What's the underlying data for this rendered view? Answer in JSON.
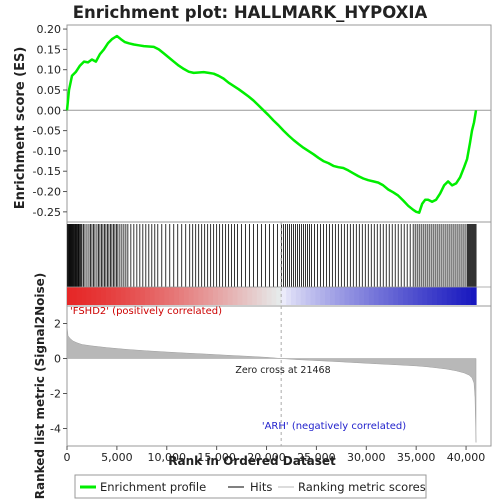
{
  "chart_data": {
    "type": "line",
    "title": "Enrichment plot: HALLMARK_HYPOXIA",
    "top_panel": {
      "ylabel": "Enrichment score (ES)",
      "ylim": [
        -0.275,
        0.21
      ],
      "yticks": [
        "0.20",
        "0.15",
        "0.10",
        "0.05",
        "0.00",
        "-0.05",
        "-0.10",
        "-0.15",
        "-0.20",
        "-0.25"
      ],
      "ytick_values": [
        0.2,
        0.15,
        0.1,
        0.05,
        0.0,
        -0.05,
        -0.1,
        -0.15,
        -0.2,
        -0.25
      ],
      "series": [
        {
          "name": "Enrichment profile",
          "color": "#00ee00",
          "x": [
            0,
            200,
            500,
            900,
            1300,
            1700,
            2100,
            2500,
            2900,
            3300,
            3700,
            4100,
            4500,
            5000,
            5400,
            5800,
            6200,
            6700,
            7200,
            7700,
            8200,
            8700,
            9200,
            9700,
            10200,
            10700,
            11200,
            11700,
            12200,
            12700,
            13200,
            13700,
            14200,
            14700,
            15200,
            15700,
            16200,
            16700,
            17200,
            17700,
            18200,
            18700,
            19200,
            19700,
            20200,
            20700,
            21200,
            21700,
            22200,
            22700,
            23200,
            23700,
            24200,
            24700,
            25200,
            25700,
            26200,
            26700,
            27200,
            27700,
            28200,
            28700,
            29200,
            29700,
            30200,
            30700,
            31200,
            31700,
            32200,
            32700,
            33200,
            33700,
            34200,
            34700,
            35000,
            35300,
            35600,
            35900,
            36200,
            36600,
            37000,
            37400,
            37800,
            38200,
            38600,
            39000,
            39400,
            39800,
            40100,
            40400,
            40600,
            40800,
            41000
          ],
          "y": [
            0.0,
            0.05,
            0.085,
            0.095,
            0.11,
            0.12,
            0.118,
            0.125,
            0.12,
            0.138,
            0.15,
            0.165,
            0.175,
            0.183,
            0.175,
            0.168,
            0.165,
            0.162,
            0.16,
            0.158,
            0.157,
            0.156,
            0.15,
            0.14,
            0.13,
            0.12,
            0.11,
            0.102,
            0.095,
            0.092,
            0.093,
            0.094,
            0.092,
            0.09,
            0.085,
            0.078,
            0.068,
            0.06,
            0.052,
            0.043,
            0.034,
            0.024,
            0.012,
            0.0,
            -0.012,
            -0.025,
            -0.037,
            -0.05,
            -0.062,
            -0.073,
            -0.083,
            -0.092,
            -0.1,
            -0.108,
            -0.117,
            -0.125,
            -0.13,
            -0.137,
            -0.14,
            -0.142,
            -0.148,
            -0.155,
            -0.162,
            -0.168,
            -0.172,
            -0.175,
            -0.178,
            -0.185,
            -0.195,
            -0.202,
            -0.21,
            -0.222,
            -0.235,
            -0.245,
            -0.25,
            -0.252,
            -0.23,
            -0.22,
            -0.22,
            -0.225,
            -0.22,
            -0.205,
            -0.185,
            -0.175,
            -0.185,
            -0.18,
            -0.165,
            -0.14,
            -0.12,
            -0.08,
            -0.05,
            -0.03,
            0.0
          ]
        }
      ]
    },
    "hits_panel": {
      "legend_label": "Hits",
      "hit_positions": [
        50,
        120,
        200,
        260,
        330,
        400,
        470,
        520,
        600,
        680,
        750,
        820,
        900,
        980,
        1050,
        1130,
        1200,
        1300,
        1400,
        1500,
        1650,
        1800,
        2000,
        2200,
        2350,
        2500,
        2650,
        2800,
        3000,
        3150,
        3300,
        3450,
        3600,
        3750,
        3900,
        4050,
        4200,
        4350,
        4500,
        4650,
        4800,
        4950,
        5100,
        5300,
        5500,
        5700,
        5900,
        6100,
        6400,
        6700,
        7000,
        7300,
        7600,
        7900,
        8200,
        8500,
        8800,
        9100,
        9500,
        9900,
        10300,
        10700,
        11100,
        11500,
        11900,
        12300,
        12600,
        12900,
        13200,
        13500,
        13800,
        14100,
        14400,
        14700,
        15000,
        15300,
        15600,
        15900,
        16200,
        16500,
        16800,
        17100,
        17500,
        17900,
        18300,
        18700,
        19100,
        19500,
        19900,
        20300,
        20700,
        21100,
        21500,
        21700,
        21900,
        22100,
        22300,
        22500,
        22700,
        22900,
        23100,
        23300,
        23500,
        23700,
        23900,
        24100,
        24300,
        24500,
        24800,
        25100,
        25400,
        25700,
        26000,
        26300,
        26600,
        26900,
        27200,
        27500,
        27800,
        28100,
        28400,
        28700,
        29000,
        29300,
        29600,
        29900,
        30200,
        30500,
        30800,
        31100,
        31400,
        31700,
        32000,
        32300,
        32600,
        32900,
        33200,
        33500,
        33800,
        34100,
        34400,
        34700,
        34900,
        35100,
        35300,
        35500,
        35700,
        35900,
        36100,
        36300,
        36500,
        36700,
        36900,
        37100,
        37300,
        37500,
        37700,
        37900,
        38100,
        38300,
        38500,
        38700,
        38900,
        39100,
        39300,
        39500,
        39700,
        39900,
        40100,
        40200,
        40300,
        40400,
        40500,
        40600,
        40700,
        40800,
        40900,
        41000
      ]
    },
    "ranking_panel": {
      "ylabel": "Ranked list metric (Signal2Noise)",
      "ylim": [
        -5,
        3
      ],
      "yticks": [
        "2",
        "0",
        "-2",
        "-4"
      ],
      "ytick_values": [
        2,
        0,
        -2,
        -4
      ],
      "legend_label": "Ranking metric scores",
      "fill_color": "#b8b8b8",
      "x": [
        0,
        100,
        300,
        600,
        1000,
        1500,
        2500,
        4000,
        6000,
        8000,
        10000,
        12000,
        14000,
        16000,
        18000,
        20000,
        21468,
        23000,
        25000,
        27000,
        29000,
        31000,
        33000,
        35000,
        36000,
        37000,
        38000,
        39000,
        39800,
        40300,
        40600,
        40800,
        40900,
        41000
      ],
      "y": [
        1.9,
        1.3,
        1.15,
        1.0,
        0.9,
        0.8,
        0.72,
        0.62,
        0.52,
        0.44,
        0.37,
        0.31,
        0.25,
        0.19,
        0.13,
        0.07,
        0.0,
        -0.06,
        -0.12,
        -0.18,
        -0.24,
        -0.3,
        -0.36,
        -0.42,
        -0.47,
        -0.53,
        -0.6,
        -0.7,
        -0.82,
        -0.95,
        -1.1,
        -1.4,
        -2.2,
        -4.8
      ],
      "zero_cross_label": "Zero cross at 21468",
      "zero_cross_value": 21468,
      "pos_label": "'FSHD2' (positively correlated)",
      "neg_label": "'ARH' (negatively correlated)"
    },
    "xaxis": {
      "label": "Rank in Ordered Dataset",
      "xlim": [
        0,
        42500
      ],
      "ticks": [
        "0",
        "5,000",
        "10,000",
        "15,000",
        "20,000",
        "25,000",
        "30,000",
        "35,000",
        "40,000"
      ],
      "tick_values": [
        0,
        5000,
        10000,
        15000,
        20000,
        25000,
        30000,
        35000,
        40000
      ]
    },
    "legend": [
      {
        "label": "Enrichment profile",
        "color": "#00ee00"
      },
      {
        "label": "Hits",
        "color": "#000000"
      },
      {
        "label": "Ranking metric scores",
        "color": "#b8b8b8"
      }
    ],
    "legend_position": "bottom",
    "grid": false
  }
}
